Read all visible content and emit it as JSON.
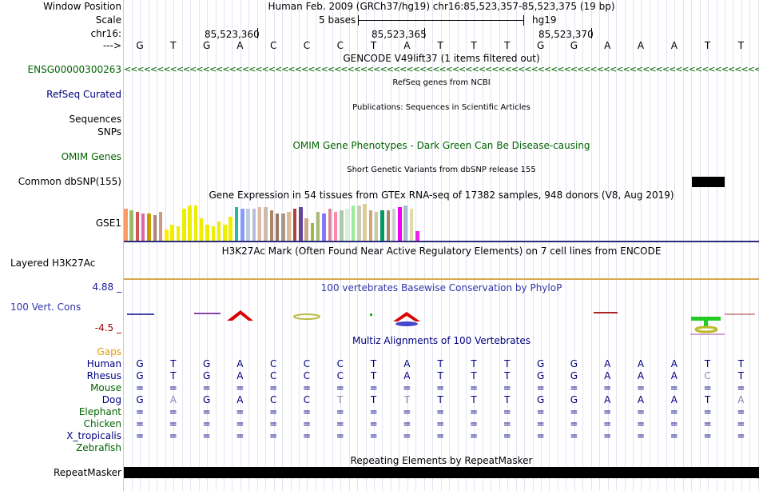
{
  "labels": {
    "window_position": "Window Position",
    "scale": "Scale",
    "chr": "chr16:",
    "arrow": "--->",
    "gencode_gene": "ENSG00000300263",
    "refseq": "RefSeq Curated",
    "sequences": "Sequences",
    "snps": "SNPs",
    "omim": "OMIM Genes",
    "dbsnp": "Common dbSNP(155)",
    "gse1": "GSE1",
    "h3k27ac": "Layered H3K27Ac",
    "cons_max": "4.88 _",
    "cons_label": "100 Vert. Cons",
    "cons_min": "-4.5 _",
    "gaps": "Gaps",
    "repeatmasker": "RepeatMasker"
  },
  "header": {
    "assembly": "Human Feb. 2009 (GRCh37/hg19)   chr16:85,523,357-85,523,375 (19 bp)",
    "scale_text": "5 bases",
    "scale_db": "hg19",
    "pos1": "85,523,360",
    "pos2": "85,523,365",
    "pos3": "85,523,370"
  },
  "bases": [
    "G",
    "T",
    "G",
    "A",
    "C",
    "C",
    "C",
    "T",
    "A",
    "T",
    "T",
    "T",
    "G",
    "G",
    "A",
    "A",
    "A",
    "T",
    "T"
  ],
  "tracks": {
    "gencode": "GENCODE V49lift37 (1 items filtered out)",
    "refseq": "RefSeq genes from NCBI",
    "publications": "Publications: Sequences in Scientific Articles",
    "omim": "OMIM Gene Phenotypes - Dark Green Can Be Disease-causing",
    "dbsnp": "Short Genetic Variants from dbSNP release 155",
    "gtex": "Gene Expression in 54 tissues from GTEx RNA-seq of 17382 samples, 948 donors (V8, Aug 2019)",
    "h3k27ac": "H3K27Ac Mark (Often Found Near Active Regulatory Elements) on 7 cell lines from ENCODE",
    "phylop": "100 vertebrates Basewise Conservation by PhyloP",
    "multiz": "Multiz Alignments of 100 Vertebrates",
    "repeats": "Repeating Elements by RepeatMasker"
  },
  "species": [
    {
      "name": "Human",
      "row": [
        "G",
        "T",
        "G",
        "A",
        "C",
        "C",
        "C",
        "T",
        "A",
        "T",
        "T",
        "T",
        "G",
        "G",
        "A",
        "A",
        "A",
        "T",
        "T"
      ],
      "faded": []
    },
    {
      "name": "Rhesus",
      "row": [
        "G",
        "T",
        "G",
        "A",
        "C",
        "C",
        "C",
        "T",
        "A",
        "T",
        "T",
        "T",
        "G",
        "G",
        "A",
        "A",
        "A",
        "C",
        "T"
      ],
      "faded": [
        17
      ]
    },
    {
      "name": "Mouse",
      "row": [
        "=",
        "=",
        "=",
        "=",
        "=",
        "=",
        "=",
        "=",
        "=",
        "=",
        "=",
        "=",
        "=",
        "=",
        "=",
        "=",
        "=",
        "=",
        "="
      ],
      "faded": []
    },
    {
      "name": "Dog",
      "row": [
        "G",
        "A",
        "G",
        "A",
        "C",
        "C",
        "T",
        "T",
        "T",
        "T",
        "T",
        "T",
        "G",
        "G",
        "A",
        "A",
        "A",
        "T",
        "A"
      ],
      "faded": [
        1,
        6,
        8,
        18
      ]
    },
    {
      "name": "Elephant",
      "row": [
        "=",
        "=",
        "=",
        "=",
        "=",
        "=",
        "=",
        "=",
        "=",
        "=",
        "=",
        "=",
        "=",
        "=",
        "=",
        "=",
        "=",
        "=",
        "="
      ],
      "faded": []
    },
    {
      "name": "Chicken",
      "row": [
        "=",
        "=",
        "=",
        "=",
        "=",
        "=",
        "=",
        "=",
        "=",
        "=",
        "=",
        "=",
        "=",
        "=",
        "=",
        "=",
        "=",
        "=",
        "="
      ],
      "faded": []
    },
    {
      "name": "X_tropicalis",
      "row": [
        "=",
        "=",
        "=",
        "=",
        "=",
        "=",
        "=",
        "=",
        "=",
        "=",
        "=",
        "=",
        "=",
        "=",
        "=",
        "=",
        "=",
        "=",
        "="
      ],
      "faded": []
    },
    {
      "name": "Zebrafish",
      "row": [],
      "faded": []
    }
  ],
  "gtex_values": [
    40,
    38,
    36,
    34,
    34,
    32,
    36,
    14,
    20,
    18,
    40,
    44,
    44,
    28,
    20,
    18,
    24,
    20,
    30,
    42,
    40,
    40,
    40,
    42,
    42,
    38,
    34,
    34,
    36,
    40,
    42,
    28,
    22,
    36,
    34,
    40,
    36,
    38,
    40,
    44,
    44,
    46,
    38,
    36,
    38,
    38,
    40,
    42,
    44,
    40,
    12
  ],
  "gtex_colors": [
    "#ff9966",
    "#99bb66",
    "#cc5555",
    "#dd66aa",
    "#cc9900",
    "#aa8877",
    "#cc9988",
    "#ffee00",
    "#eeee00",
    "#eeee00",
    "#eeee00",
    "#eeee00",
    "#eeee00",
    "#eeee00",
    "#eeee00",
    "#eeee00",
    "#eeee00",
    "#eeee00",
    "#eeee00",
    "#22bbaa",
    "#8899ff",
    "#bbccdd",
    "#bbbbdd",
    "#ddbbaa",
    "#ccbbaa",
    "#aa8866",
    "#997766",
    "#aa9988",
    "#ddbb99",
    "#aa4444",
    "#664499",
    "#ccaa88",
    "#99bb44",
    "#aabb77",
    "#8877ee",
    "#dd8899",
    "#ff88aa",
    "#aaccaa",
    "#ddeedd",
    "#99ee99",
    "#ccccbb",
    "#ddcc99",
    "#ccaa77",
    "#cccc99",
    "#009966",
    "#aa8866",
    "#cccccc",
    "#ee00ee",
    "#aabbcc",
    "#ddddaa",
    "#ee22ee"
  ],
  "colors": {
    "green": "#006400",
    "navy": "#000080",
    "gaps": "#e39a0a",
    "phylop": "#3333aa",
    "cons_max": "#1a1a99",
    "cons_min": "#990000",
    "h3k27ac_line": "#2a2a7a",
    "phylop_line": "#d6a84e"
  }
}
